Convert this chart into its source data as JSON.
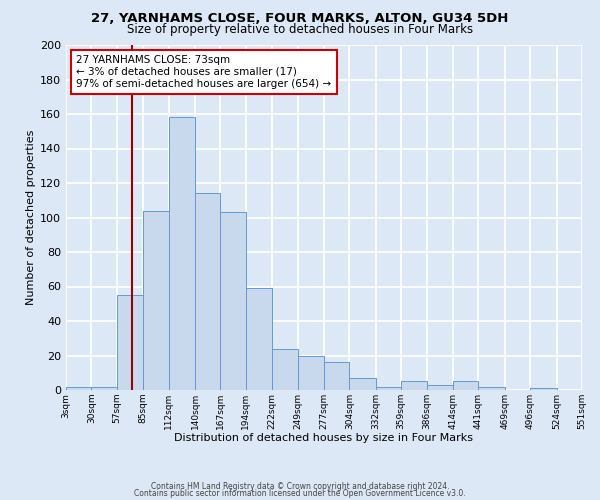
{
  "title1": "27, YARNHAMS CLOSE, FOUR MARKS, ALTON, GU34 5DH",
  "title2": "Size of property relative to detached houses in Four Marks",
  "xlabel": "Distribution of detached houses by size in Four Marks",
  "ylabel": "Number of detached properties",
  "bar_color": "#c8d8ed",
  "bar_edge_color": "#6699cc",
  "background_color": "#dce8f5",
  "grid_color": "#ffffff",
  "annotation_box_color": "#ffffff",
  "annotation_box_edge": "#cc0000",
  "vline_color": "#990000",
  "bin_edges": [
    3,
    30,
    57,
    85,
    112,
    140,
    167,
    194,
    222,
    249,
    277,
    304,
    332,
    359,
    386,
    414,
    441,
    469,
    496,
    524,
    551
  ],
  "bin_labels": [
    "3sqm",
    "30sqm",
    "57sqm",
    "85sqm",
    "112sqm",
    "140sqm",
    "167sqm",
    "194sqm",
    "222sqm",
    "249sqm",
    "277sqm",
    "304sqm",
    "332sqm",
    "359sqm",
    "386sqm",
    "414sqm",
    "441sqm",
    "469sqm",
    "496sqm",
    "524sqm",
    "551sqm"
  ],
  "counts": [
    2,
    2,
    55,
    104,
    158,
    114,
    103,
    59,
    24,
    20,
    16,
    7,
    2,
    5,
    3,
    5,
    2,
    0,
    1,
    0,
    1
  ],
  "ylim": [
    0,
    200
  ],
  "yticks": [
    0,
    20,
    40,
    60,
    80,
    100,
    120,
    140,
    160,
    180,
    200
  ],
  "vline_x": 73,
  "ann_line1": "27 YARNHAMS CLOSE: 73sqm",
  "ann_line2": "← 3% of detached houses are smaller (17)",
  "ann_line3": "97% of semi-detached houses are larger (654) →",
  "footer1": "Contains HM Land Registry data © Crown copyright and database right 2024.",
  "footer2": "Contains public sector information licensed under the Open Government Licence v3.0.",
  "title1_fontsize": 9.5,
  "title2_fontsize": 8.5,
  "xlabel_fontsize": 8,
  "ylabel_fontsize": 8,
  "xtick_fontsize": 6.5,
  "ytick_fontsize": 8,
  "ann_fontsize": 7.5,
  "footer_fontsize": 5.5
}
